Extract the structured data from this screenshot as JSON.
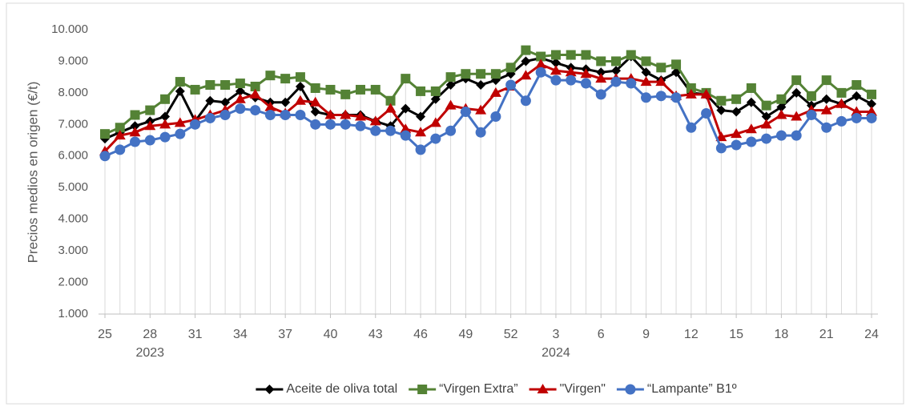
{
  "chart_data": {
    "type": "line",
    "y_label": "Precios medios  en origen (€/t)",
    "categories": [
      "25",
      null,
      null,
      "28",
      null,
      null,
      "31",
      null,
      null,
      "34",
      null,
      null,
      "37",
      null,
      null,
      "40",
      null,
      null,
      "43",
      null,
      null,
      "46",
      null,
      null,
      "49",
      null,
      null,
      "52",
      null,
      null,
      "3",
      null,
      null,
      "6",
      null,
      null,
      "9",
      null,
      null,
      "12",
      null,
      null,
      "15",
      null,
      null,
      "18",
      null,
      null,
      "21",
      null,
      null,
      "24"
    ],
    "x_groups": [
      "2023",
      "2024"
    ],
    "ylim": [
      1000,
      10000
    ],
    "yticks": [
      {
        "value": 1000,
        "label": "1.000"
      },
      {
        "value": 2000,
        "label": "2.000"
      },
      {
        "value": 3000,
        "label": "3.000"
      },
      {
        "value": 4000,
        "label": "4.000"
      },
      {
        "value": 5000,
        "label": "5.000"
      },
      {
        "value": 6000,
        "label": "6.000"
      },
      {
        "value": 7000,
        "label": "7.000"
      },
      {
        "value": 8000,
        "label": "8.000"
      },
      {
        "value": 9000,
        "label": "9.000"
      },
      {
        "value": 10000,
        "label": "10.000"
      }
    ],
    "drop_lines": true,
    "legend": "bottom",
    "series": [
      {
        "name": "Aceite de oliva total",
        "color": "#000000",
        "marker": "diamond",
        "values": [
          6550,
          6750,
          6950,
          7100,
          7250,
          8050,
          7100,
          7750,
          7700,
          8050,
          7850,
          7700,
          7700,
          8200,
          7400,
          7300,
          7300,
          7300,
          7100,
          6950,
          7500,
          7250,
          7800,
          8250,
          8450,
          8250,
          8400,
          8600,
          9000,
          9100,
          8950,
          8800,
          8750,
          8650,
          8700,
          9150,
          8650,
          8400,
          8650,
          8000,
          7950,
          7450,
          7400,
          7700,
          7250,
          7550,
          8000,
          7600,
          7800,
          7650,
          7900,
          7650
        ]
      },
      {
        "name": "“Virgen Extra”",
        "color": "#548235",
        "marker": "square",
        "values": [
          6700,
          6900,
          7300,
          7450,
          7800,
          8350,
          8100,
          8250,
          8250,
          8300,
          8200,
          8550,
          8450,
          8500,
          8150,
          8100,
          7950,
          8100,
          8100,
          7750,
          8450,
          8050,
          8050,
          8500,
          8600,
          8600,
          8600,
          8800,
          9350,
          9150,
          9200,
          9200,
          9200,
          9000,
          9000,
          9200,
          9000,
          8800,
          8900,
          8150,
          8000,
          7750,
          7800,
          8150,
          7600,
          7800,
          8400,
          7900,
          8400,
          8000,
          8250,
          7950
        ]
      },
      {
        "name": "\"Virgen\"",
        "color": "#c00000",
        "marker": "triangle",
        "values": [
          6150,
          6650,
          6750,
          6950,
          7000,
          7050,
          7150,
          7300,
          7450,
          7800,
          7950,
          7550,
          7350,
          7750,
          7700,
          7300,
          7300,
          7250,
          7100,
          7500,
          6850,
          6750,
          7050,
          7600,
          7500,
          7450,
          8000,
          8200,
          8550,
          8900,
          8700,
          8650,
          8600,
          8450,
          8450,
          8450,
          8350,
          8350,
          7900,
          7950,
          7950,
          6600,
          6700,
          6850,
          7000,
          7300,
          7250,
          7450,
          7450,
          7650,
          7400,
          7400
        ]
      },
      {
        "name": "“Lampante” B1º",
        "color": "#4472c4",
        "marker": "circle",
        "values": [
          6000,
          6200,
          6450,
          6500,
          6600,
          6700,
          7000,
          7200,
          7300,
          7500,
          7450,
          7300,
          7300,
          7300,
          7000,
          7000,
          7000,
          6950,
          6800,
          6800,
          6650,
          6200,
          6550,
          6800,
          7400,
          6750,
          7250,
          8250,
          7750,
          8650,
          8400,
          8400,
          8300,
          7950,
          8350,
          8300,
          7850,
          7900,
          7850,
          6900,
          7350,
          6250,
          6350,
          6450,
          6550,
          6650,
          6650,
          7300,
          6900,
          7100,
          7200,
          7200
        ]
      }
    ]
  }
}
